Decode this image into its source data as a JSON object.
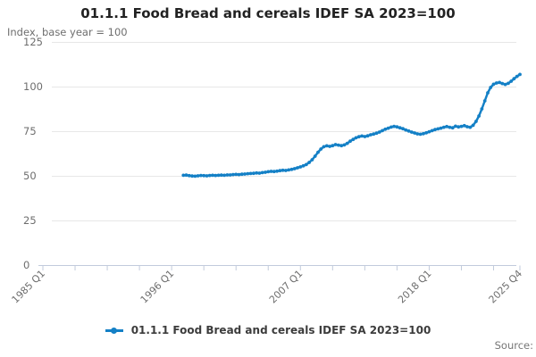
{
  "header": {
    "title": "01.1.1 Food Bread and cereals IDEF SA 2023=100",
    "subtitle": "Index, base year = 100"
  },
  "legend": {
    "label": "01.1.1 Food Bread and cereals IDEF SA 2023=100"
  },
  "footer": {
    "source_label": "Source:"
  },
  "colors": {
    "line": "#1480c6",
    "grid": "#e7e7e7",
    "axis": "#c2cbdc",
    "text_muted": "#6e6e6e"
  },
  "chart_data": {
    "type": "line",
    "title": "01.1.1 Food Bread and cereals IDEF SA 2023=100",
    "ylabel": "Index, base year = 100",
    "grid": true,
    "legend_position": "bottom",
    "y_axis": {
      "range": [
        0,
        125
      ],
      "ticks": [
        0,
        25,
        50,
        75,
        100,
        125
      ]
    },
    "x_axis": {
      "range_quarters": [
        "1985 Q1",
        "2025 Q4"
      ],
      "tick_quarter_indices": [
        0,
        11,
        22,
        33,
        44,
        55,
        66,
        77,
        88,
        99,
        110,
        121,
        132,
        143,
        154,
        163
      ],
      "labeled_ticks": [
        {
          "quarter": "1985 Q1",
          "label": "1985 Q1"
        },
        {
          "quarter": "1996 Q1",
          "label": "1996 Q1"
        },
        {
          "quarter": "2007 Q1",
          "label": "2007 Q1"
        },
        {
          "quarter": "2018 Q1",
          "label": "2018 Q1"
        },
        {
          "quarter": "2025 Q4",
          "label": "2025 Q4"
        }
      ]
    },
    "series": [
      {
        "name": "01.1.1 Food Bread and cereals IDEF SA 2023=100",
        "start_quarter": "1997 Q1",
        "frequency": "quarterly",
        "values_by_year": {
          "1997": [
            50.3,
            50.4,
            50.1,
            49.9
          ],
          "1998": [
            49.8,
            50.0,
            50.2,
            50.1
          ],
          "1999": [
            50.0,
            50.2,
            50.3,
            50.2
          ],
          "2000": [
            50.3,
            50.4,
            50.3,
            50.5
          ],
          "2001": [
            50.5,
            50.7,
            50.8,
            50.7
          ],
          "2002": [
            50.9,
            51.0,
            51.2,
            51.3
          ],
          "2003": [
            51.4,
            51.6,
            51.5,
            51.8
          ],
          "2004": [
            52.0,
            52.3,
            52.5,
            52.4
          ],
          "2005": [
            52.6,
            52.9,
            53.1,
            53.0
          ],
          "2006": [
            53.3,
            53.6,
            54.0,
            54.5
          ],
          "2007": [
            55.0,
            55.6,
            56.3,
            57.5
          ],
          "2008": [
            59.0,
            61.0,
            63.2,
            65.0
          ],
          "2009": [
            66.3,
            66.8,
            66.5,
            66.9
          ],
          "2010": [
            67.5,
            67.2,
            66.9,
            67.3
          ],
          "2011": [
            68.2,
            69.4,
            70.4,
            71.3
          ],
          "2012": [
            71.9,
            72.3,
            72.0,
            72.4
          ],
          "2013": [
            73.0,
            73.4,
            73.9,
            74.5
          ],
          "2014": [
            75.3,
            76.1,
            76.7,
            77.3
          ],
          "2015": [
            77.7,
            77.4,
            76.9,
            76.4
          ],
          "2016": [
            75.7,
            75.1,
            74.5,
            74.0
          ],
          "2017": [
            73.5,
            73.3,
            73.6,
            74.1
          ],
          "2018": [
            74.7,
            75.3,
            75.9,
            76.3
          ],
          "2019": [
            76.7,
            77.2,
            77.6,
            77.2
          ],
          "2020": [
            76.9,
            77.8,
            77.4,
            77.7
          ],
          "2021": [
            78.1,
            77.5,
            77.2,
            78.3
          ],
          "2022": [
            80.5,
            83.5,
            87.5,
            92.0
          ],
          "2023": [
            96.5,
            99.5,
            101.3,
            102.0
          ],
          "2024": [
            102.3,
            101.7,
            101.2,
            101.8
          ],
          "2025": [
            103.0,
            104.4,
            105.7,
            106.8
          ]
        }
      }
    ]
  }
}
